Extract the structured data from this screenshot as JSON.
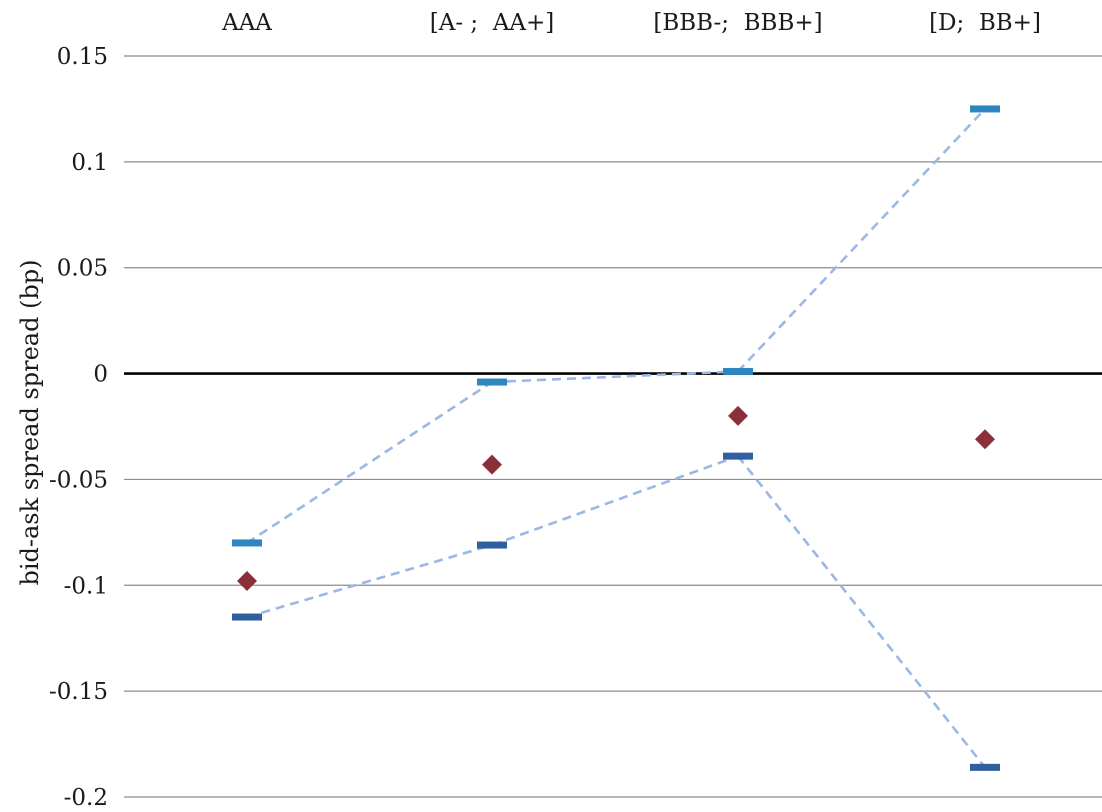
{
  "chart_data": {
    "type": "scatter",
    "title": "",
    "xlabel": "",
    "ylabel": "bid-ask spread spread (bp)",
    "categories": [
      "AAA",
      "[A- ;  AA+]",
      "[BBB-;  BBB+]",
      "[D;  BB+]"
    ],
    "ylim": [
      -0.2,
      0.15
    ],
    "yticks": [
      0.15,
      0.1,
      0.05,
      0,
      -0.05,
      -0.1,
      -0.15,
      -0.2
    ],
    "ytick_labels": [
      "0.15",
      "0.1",
      "0.05",
      "0",
      "-0.05",
      "-0.1",
      "-0.15",
      "-0.2"
    ],
    "category_axis_position": "top",
    "grid": true,
    "series": [
      {
        "role": "upper",
        "values": [
          -0.08,
          -0.004,
          0.001,
          0.125
        ]
      },
      {
        "role": "lower",
        "values": [
          -0.115,
          -0.081,
          -0.039,
          -0.186
        ]
      },
      {
        "role": "point",
        "values": [
          -0.098,
          -0.043,
          -0.02,
          -0.031
        ]
      }
    ],
    "connectors": [
      {
        "from": "upper",
        "index": 0,
        "to": "upper",
        "to_index": 1
      },
      {
        "from": "upper",
        "index": 1,
        "to": "upper",
        "to_index": 2
      },
      {
        "from": "upper",
        "index": 2,
        "to": "upper",
        "to_index": 3
      },
      {
        "from": "lower",
        "index": 0,
        "to": "lower",
        "to_index": 1
      },
      {
        "from": "lower",
        "index": 1,
        "to": "lower",
        "to_index": 2
      },
      {
        "from": "lower",
        "index": 2,
        "to": "lower",
        "to_index": 3
      }
    ],
    "colors": {
      "upper_marker": "#2e86c1",
      "lower_marker": "#2f5f9e",
      "point_marker": "#8b2f3a",
      "connector": "#9ab7e6",
      "gridline": "#8c8c8c",
      "zero_line": "#000000"
    }
  }
}
